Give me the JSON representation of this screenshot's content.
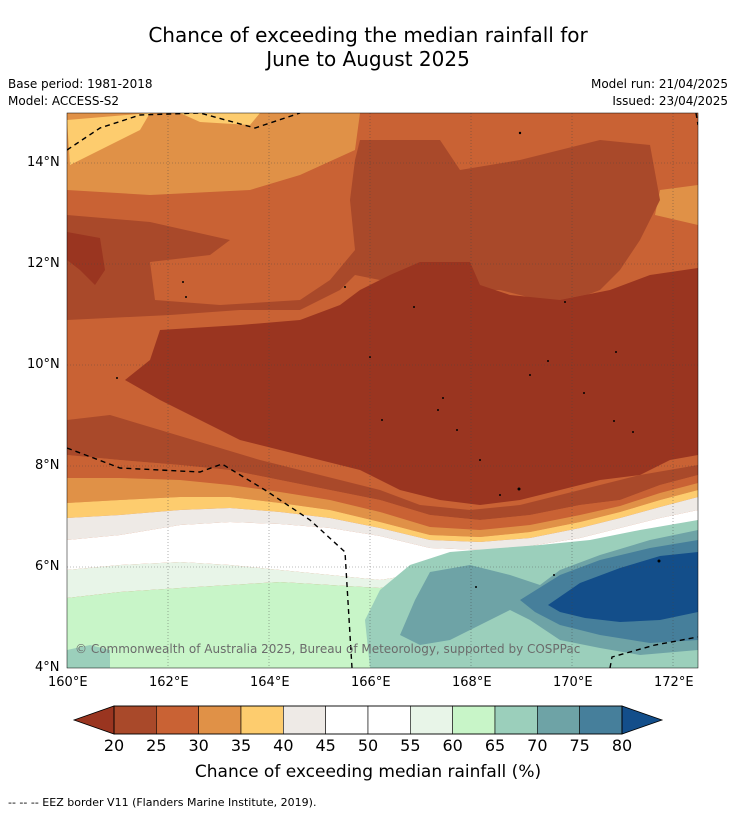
{
  "title_line1": "Chance of exceeding the median rainfall for",
  "title_line2": "June to August 2025",
  "base_period": "Base period: 1981-2018",
  "model": "Model: ACCESS-S2",
  "model_run": "Model run: 21/04/2025",
  "issued": "Issued: 23/04/2025",
  "lat_labels": [
    "14°N",
    "12°N",
    "10°N",
    "8°N",
    "6°N",
    "4°N"
  ],
  "lon_labels": [
    "160°E",
    "162°E",
    "164°E",
    "166°E",
    "168°E",
    "170°E",
    "172°E"
  ],
  "copyright": "© Commonwealth of Australia 2025, Bureau of Meteorology, supported by COSPPac",
  "colorbar": {
    "ticks": [
      "20",
      "25",
      "30",
      "35",
      "40",
      "45",
      "50",
      "55",
      "60",
      "65",
      "70",
      "75",
      "80"
    ],
    "colors": [
      "#a9492a",
      "#c96234",
      "#e09147",
      "#fdcc6e",
      "#eeeae6",
      "#ffffff",
      "#ffffff",
      "#e8f5e8",
      "#c8f5c8",
      "#9bcfbb",
      "#6ea3a6",
      "#467f9b"
    ],
    "under_color": "#9a3520",
    "over_color": "#134e8a",
    "label": "Chance of exceeding median rainfall (%)"
  },
  "footer": "--  --  -- EEZ border V11 (Flanders Marine Institute, 2019)."
}
